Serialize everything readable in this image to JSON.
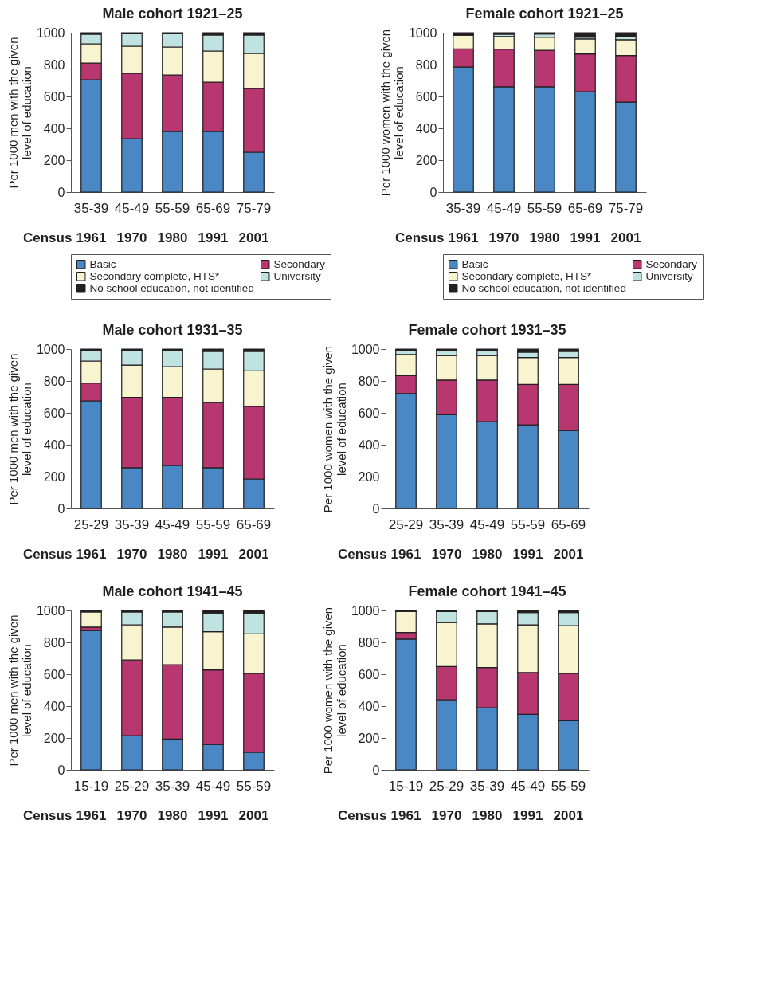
{
  "chart_data": [
    {
      "type": "bar",
      "stacked": true,
      "title": "Male cohort 1921–25",
      "ylabel": "Per 1000 men with the given level of education",
      "categories": [
        "35-39",
        "45-49",
        "55-59",
        "65-69",
        "75-79"
      ],
      "ylim": [
        0,
        1000
      ],
      "yticks": [
        0,
        200,
        400,
        600,
        800,
        1000
      ],
      "legend": "bottom",
      "annotations": [
        "Census",
        "1961",
        "1970",
        "1980",
        "1991",
        "2001"
      ],
      "series": [
        {
          "name": "Basic",
          "color": "#4a87c5",
          "values": [
            705,
            335,
            380,
            380,
            250
          ]
        },
        {
          "name": "Secondary",
          "color": "#b83770",
          "values": [
            105,
            410,
            355,
            310,
            400
          ]
        },
        {
          "name": "Secondary complete, HTS*",
          "color": "#f8f4cf",
          "values": [
            120,
            170,
            175,
            195,
            220
          ]
        },
        {
          "name": "University",
          "color": "#bfe3e1",
          "values": [
            60,
            78,
            83,
            100,
            115
          ]
        },
        {
          "name": "No school education, not identified",
          "color": "#231f20",
          "values": [
            10,
            7,
            7,
            15,
            15
          ]
        }
      ]
    },
    {
      "type": "bar",
      "stacked": true,
      "title": "Female cohort 1921–25",
      "ylabel": "Per 1000 women with the given level of education",
      "categories": [
        "35-39",
        "45-49",
        "55-59",
        "65-69",
        "75-79"
      ],
      "ylim": [
        0,
        1000
      ],
      "yticks": [
        0,
        200,
        400,
        600,
        800,
        1000
      ],
      "legend": "bottom",
      "annotations": [
        "Census",
        "1961",
        "1970",
        "1980",
        "1991",
        "2001"
      ],
      "series": [
        {
          "name": "Basic",
          "color": "#4a87c5",
          "values": [
            784,
            661,
            661,
            630,
            564
          ]
        },
        {
          "name": "Secondary",
          "color": "#b83770",
          "values": [
            114,
            236,
            228,
            237,
            293
          ]
        },
        {
          "name": "Secondary complete, HTS*",
          "color": "#f8f4cf",
          "values": [
            86,
            79,
            83,
            94,
            99
          ]
        },
        {
          "name": "University",
          "color": "#bfe3e1",
          "values": [
            null,
            14,
            20,
            11,
            20
          ]
        },
        {
          "name": "No school education, not identified",
          "color": "#231f20",
          "values": [
            16,
            10,
            8,
            28,
            24
          ]
        }
      ]
    },
    {
      "type": "bar",
      "stacked": true,
      "title": "Male cohort 1931–35",
      "ylabel": "Per 1000 men with the given level of education",
      "categories": [
        "25-29",
        "35-39",
        "45-49",
        "55-59",
        "65-69"
      ],
      "ylim": [
        0,
        1000
      ],
      "yticks": [
        0,
        200,
        400,
        600,
        800,
        1000
      ],
      "annotations": [
        "Census",
        "1961",
        "1970",
        "1980",
        "1991",
        "2001"
      ],
      "series": [
        {
          "color": "#4a87c5",
          "values": [
            675,
            256,
            270,
            256,
            185
          ]
        },
        {
          "color": "#b83770",
          "values": [
            112,
            441,
            427,
            408,
            455
          ]
        },
        {
          "color": "#f8f4cf",
          "values": [
            138,
            202,
            192,
            211,
            223
          ]
        },
        {
          "color": "#bfe3e1",
          "values": [
            67,
            93,
            103,
            110,
            122
          ]
        },
        {
          "color": "#231f20",
          "values": [
            8,
            8,
            8,
            15,
            15
          ]
        }
      ]
    },
    {
      "type": "bar",
      "stacked": true,
      "title": "Female cohort 1931–35",
      "ylabel": "Per 1000 women with the given level of education",
      "categories": [
        "25-29",
        "35-39",
        "45-49",
        "55-59",
        "65-69"
      ],
      "ylim": [
        0,
        1000
      ],
      "yticks": [
        0,
        200,
        400,
        600,
        800,
        1000
      ],
      "annotations": [
        "Census",
        "1961",
        "1970",
        "1980",
        "1991",
        "2001"
      ],
      "series": [
        {
          "color": "#4a87c5",
          "values": [
            721,
            588,
            544,
            524,
            489
          ]
        },
        {
          "color": "#b83770",
          "values": [
            112,
            218,
            262,
            254,
            289
          ]
        },
        {
          "color": "#f8f4cf",
          "values": [
            133,
            153,
            153,
            169,
            169
          ]
        },
        {
          "color": "#bfe3e1",
          "values": [
            27,
            34,
            34,
            34,
            38
          ]
        },
        {
          "color": "#231f20",
          "values": [
            7,
            7,
            7,
            19,
            15
          ]
        }
      ]
    },
    {
      "type": "bar",
      "stacked": true,
      "title": "Male cohort 1941–45",
      "ylabel": "Per 1000 men with the given level of education",
      "categories": [
        "15-19",
        "25-29",
        "35-39",
        "45-49",
        "55-59"
      ],
      "ylim": [
        0,
        1000
      ],
      "yticks": [
        0,
        200,
        400,
        600,
        800,
        1000
      ],
      "annotations": [
        "Census",
        "1961",
        "1970",
        "1980",
        "1991",
        "2001"
      ],
      "series": [
        {
          "color": "#4a87c5",
          "values": [
            874,
            214,
            193,
            159,
            110
          ]
        },
        {
          "color": "#b83770",
          "values": [
            22,
            475,
            467,
            468,
            496
          ]
        },
        {
          "color": "#f8f4cf",
          "values": [
            95,
            221,
            236,
            240,
            247
          ]
        },
        {
          "color": "#bfe3e1",
          "values": [
            null,
            81,
            95,
            117,
            131
          ]
        },
        {
          "color": "#231f20",
          "values": [
            9,
            9,
            9,
            16,
            16
          ]
        }
      ]
    },
    {
      "type": "bar",
      "stacked": true,
      "title": "Female cohort 1941–45",
      "ylabel": "Per 1000 women with the given level of education",
      "categories": [
        "15-19",
        "25-29",
        "35-39",
        "45-49",
        "55-59"
      ],
      "ylim": [
        0,
        1000
      ],
      "yticks": [
        0,
        200,
        400,
        600,
        800,
        1000
      ],
      "annotations": [
        "Census",
        "1961",
        "1970",
        "1980",
        "1991",
        "2001"
      ],
      "series": [
        {
          "color": "#4a87c5",
          "values": [
            821,
            440,
            389,
            348,
            308
          ]
        },
        {
          "color": "#b83770",
          "values": [
            41,
            208,
            253,
            263,
            298
          ]
        },
        {
          "color": "#f8f4cf",
          "values": [
            132,
            276,
            274,
            298,
            299
          ]
        },
        {
          "color": "#bfe3e1",
          "values": [
            null,
            69,
            77,
            78,
            82
          ]
        },
        {
          "color": "#231f20",
          "values": [
            6,
            7,
            7,
            13,
            13
          ]
        }
      ]
    }
  ]
}
